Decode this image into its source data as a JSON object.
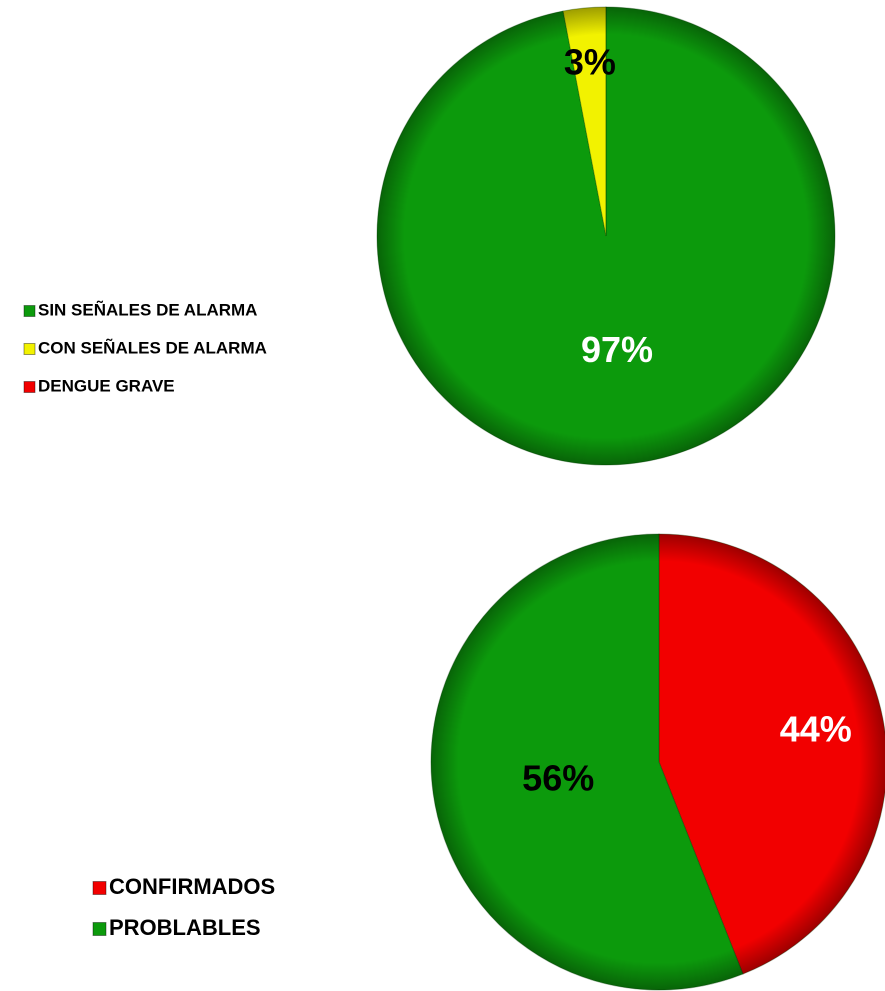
{
  "chart_data": [
    {
      "type": "pie",
      "categories": [
        "SIN SEÑALES DE ALARMA",
        "CON SEÑALES DE ALARMA",
        "DENGUE GRAVE"
      ],
      "values": [
        97,
        3,
        0
      ],
      "value_labels": [
        "97%",
        "3%",
        null
      ],
      "colors": [
        "#0c9a0c",
        "#f2f200",
        "#f20000"
      ],
      "label_colors": [
        "#ffffff",
        "#000000",
        "#000000"
      ],
      "legend": "left"
    },
    {
      "type": "pie",
      "categories": [
        "CONFIRMADOS",
        "PROBLABLES"
      ],
      "values": [
        44,
        56
      ],
      "value_labels": [
        "44%",
        "56%"
      ],
      "colors": [
        "#f20000",
        "#0c9a0c"
      ],
      "label_colors": [
        "#ffffff",
        "#000000"
      ],
      "legend": "left"
    }
  ]
}
